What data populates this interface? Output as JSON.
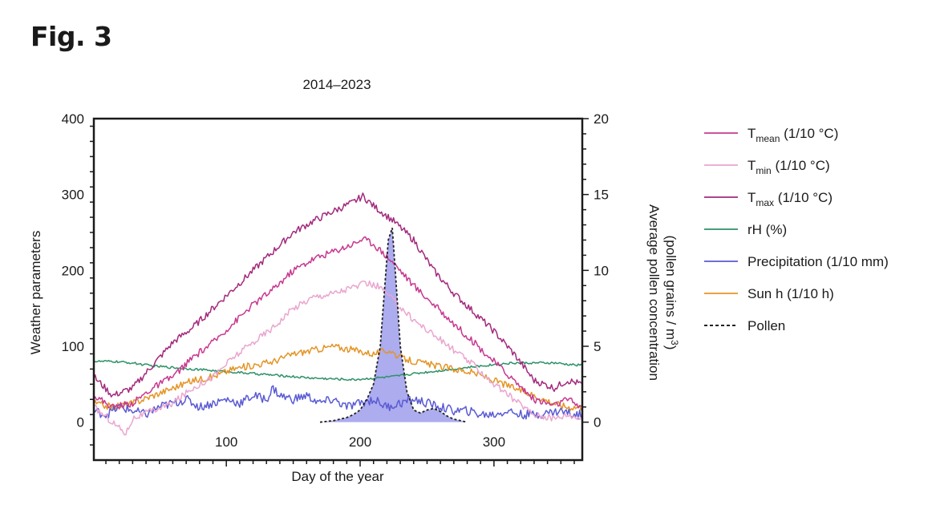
{
  "figure": {
    "label": "Fig. 3"
  },
  "chart_data": {
    "type": "line",
    "title": "2014–2023",
    "xlabel": "Day of the year",
    "ylabel_left": "Weather parameters",
    "ylabel_right_line1": "Average pollen concentration",
    "ylabel_right_line2_prefix": "(pollen grains / m",
    "ylabel_right_line2_sup": "3",
    "ylabel_right_line2_suffix": ")",
    "xlim": [
      1,
      366
    ],
    "ylim_left": [
      -50,
      400
    ],
    "ylim_right": [
      0,
      20
    ],
    "x_ticks": [
      100,
      200,
      300
    ],
    "y_left_ticks": [
      0,
      100,
      200,
      300,
      400
    ],
    "y_right_ticks": [
      0,
      5,
      10,
      15,
      20
    ],
    "grid": false,
    "legend_position": "right",
    "legend": [
      {
        "id": "tmean",
        "prefix": "T",
        "sub": "mean",
        "suffix": " (1/10 °C)",
        "color": "#c7388f",
        "dash": false
      },
      {
        "id": "tmin",
        "prefix": "T",
        "sub": "min",
        "suffix": " (1/10 °C)",
        "color": "#e9a6cf",
        "dash": false
      },
      {
        "id": "tmax",
        "prefix": "T",
        "sub": "max",
        "suffix": " (1/10 °C)",
        "color": "#a3297c",
        "dash": false
      },
      {
        "id": "rh",
        "prefix": "rH (%)",
        "sub": "",
        "suffix": "",
        "color": "#2e9168",
        "dash": false
      },
      {
        "id": "precip",
        "prefix": "Precipitation (1/10 mm)",
        "sub": "",
        "suffix": "",
        "color": "#5a5ad4",
        "dash": false
      },
      {
        "id": "sun",
        "prefix": "Sun h (1/10 h)",
        "sub": "",
        "suffix": "",
        "color": "#e49425",
        "dash": false
      },
      {
        "id": "pollen",
        "prefix": "Pollen",
        "sub": "",
        "suffix": "",
        "color": "#222222",
        "dash": true
      }
    ],
    "series": [
      {
        "id": "tmax",
        "axis": "left",
        "color": "#a3297c",
        "x": [
          1,
          15,
          30,
          45,
          60,
          75,
          90,
          105,
          120,
          135,
          150,
          165,
          180,
          195,
          202,
          210,
          225,
          240,
          255,
          270,
          285,
          300,
          315,
          330,
          345,
          355,
          366
        ],
        "y": [
          60,
          35,
          45,
          75,
          105,
          125,
          150,
          175,
          200,
          225,
          250,
          265,
          278,
          290,
          298,
          285,
          265,
          240,
          200,
          170,
          145,
          120,
          90,
          55,
          45,
          55,
          50
        ]
      },
      {
        "id": "tmean",
        "axis": "left",
        "color": "#c7388f",
        "x": [
          1,
          15,
          30,
          45,
          60,
          75,
          90,
          105,
          120,
          135,
          150,
          165,
          180,
          195,
          202,
          210,
          225,
          240,
          255,
          270,
          285,
          300,
          315,
          330,
          345,
          355,
          366
        ],
        "y": [
          35,
          20,
          25,
          45,
          60,
          85,
          105,
          130,
          155,
          175,
          200,
          215,
          225,
          235,
          242,
          235,
          210,
          180,
          155,
          130,
          105,
          80,
          55,
          30,
          22,
          30,
          20
        ]
      },
      {
        "id": "tmin",
        "axis": "left",
        "color": "#e9a6cf",
        "x": [
          1,
          15,
          25,
          30,
          45,
          60,
          75,
          90,
          105,
          120,
          135,
          150,
          165,
          180,
          195,
          205,
          215,
          225,
          240,
          255,
          270,
          285,
          300,
          315,
          330,
          345,
          355,
          366
        ],
        "y": [
          20,
          0,
          -15,
          5,
          15,
          25,
          45,
          60,
          85,
          105,
          125,
          150,
          165,
          170,
          178,
          183,
          178,
          160,
          135,
          115,
          95,
          75,
          50,
          30,
          10,
          5,
          10,
          5
        ]
      },
      {
        "id": "rh",
        "axis": "left",
        "color": "#2e9168",
        "x": [
          1,
          15,
          30,
          45,
          60,
          75,
          90,
          105,
          120,
          135,
          150,
          165,
          180,
          195,
          210,
          225,
          240,
          255,
          270,
          285,
          300,
          315,
          330,
          345,
          355,
          366
        ],
        "y": [
          80,
          80,
          78,
          74,
          72,
          70,
          68,
          66,
          64,
          62,
          60,
          58,
          57,
          56,
          58,
          60,
          64,
          67,
          70,
          73,
          76,
          78,
          78,
          78,
          76,
          75
        ]
      },
      {
        "id": "sun",
        "axis": "left",
        "color": "#e49425",
        "x": [
          1,
          15,
          30,
          45,
          60,
          75,
          90,
          105,
          120,
          135,
          150,
          165,
          180,
          195,
          210,
          222,
          230,
          240,
          255,
          270,
          285,
          300,
          315,
          330,
          345,
          355,
          366
        ],
        "y": [
          25,
          20,
          25,
          35,
          45,
          55,
          60,
          70,
          75,
          80,
          90,
          95,
          100,
          95,
          90,
          95,
          85,
          80,
          75,
          70,
          65,
          55,
          45,
          35,
          25,
          20,
          20
        ]
      },
      {
        "id": "precip",
        "axis": "left",
        "color": "#5a5ad4",
        "x": [
          1,
          10,
          20,
          30,
          40,
          50,
          60,
          70,
          80,
          90,
          100,
          110,
          120,
          130,
          135,
          140,
          150,
          160,
          170,
          180,
          190,
          200,
          210,
          220,
          230,
          240,
          250,
          260,
          270,
          280,
          290,
          300,
          310,
          320,
          330,
          340,
          350,
          360,
          366
        ],
        "y": [
          15,
          10,
          20,
          15,
          10,
          20,
          25,
          30,
          20,
          25,
          30,
          25,
          35,
          30,
          45,
          35,
          30,
          35,
          25,
          30,
          20,
          25,
          30,
          20,
          25,
          30,
          25,
          20,
          15,
          15,
          10,
          10,
          15,
          10,
          10,
          12,
          15,
          10,
          10
        ]
      },
      {
        "id": "pollen",
        "axis": "right",
        "color": "#222222",
        "dashed": true,
        "filled": true,
        "fill": "#8080e6",
        "x": [
          170,
          180,
          190,
          195,
          200,
          205,
          210,
          215,
          218,
          221,
          224,
          227,
          230,
          235,
          240,
          245,
          250,
          255,
          260,
          265,
          270,
          275,
          280
        ],
        "y": [
          0,
          0.1,
          0.3,
          0.5,
          0.8,
          1.5,
          2.5,
          5,
          8.5,
          12,
          12.8,
          9,
          5,
          2,
          0.8,
          0.6,
          0.8,
          0.9,
          0.7,
          0.4,
          0.2,
          0.1,
          0
        ]
      }
    ]
  }
}
